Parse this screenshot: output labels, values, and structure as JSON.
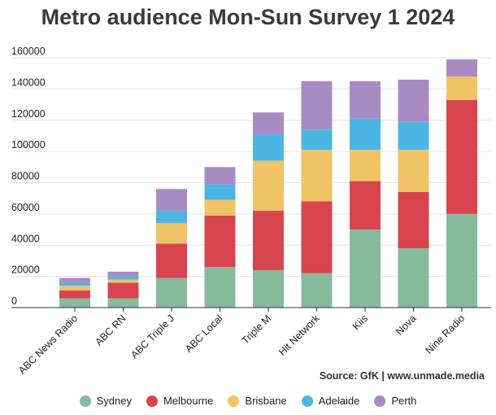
{
  "chart_data": {
    "type": "bar",
    "stacked": true,
    "title": "Metro audience Mon-Sun Survey 1 2024",
    "categories": [
      "ABC News Radio",
      "ABC RN",
      "ABC Triple J",
      "ABC Local",
      "Triple M",
      "Hit Network",
      "Kiis",
      "Nova",
      "Nine Radio"
    ],
    "series": [
      {
        "name": "Sydney",
        "color": "#86bb9c",
        "values": [
          6000,
          6000,
          19000,
          26000,
          24000,
          22000,
          50000,
          38000,
          60000
        ]
      },
      {
        "name": "Melbourne",
        "color": "#d9454f",
        "values": [
          5000,
          10000,
          22000,
          33000,
          38000,
          46000,
          31000,
          36000,
          73000
        ]
      },
      {
        "name": "Brisbane",
        "color": "#f0c366",
        "values": [
          3000,
          2000,
          13000,
          10000,
          32000,
          33000,
          20000,
          27000,
          15000
        ]
      },
      {
        "name": "Adelaide",
        "color": "#4db5e3",
        "values": [
          2000,
          2000,
          8000,
          10000,
          17000,
          13000,
          20000,
          18000,
          0
        ]
      },
      {
        "name": "Perth",
        "color": "#a98bc3",
        "values": [
          3000,
          3000,
          14000,
          11000,
          14000,
          31000,
          24000,
          27000,
          11000
        ]
      }
    ],
    "yticks": [
      "0",
      "20000",
      "40000",
      "60000",
      "80000",
      "100000",
      "120000",
      "140000",
      "160000"
    ],
    "ylim": [
      0,
      160000
    ],
    "grid": true,
    "legend_position": "bottom"
  },
  "source": "Source: GfK | www.unmade.media"
}
